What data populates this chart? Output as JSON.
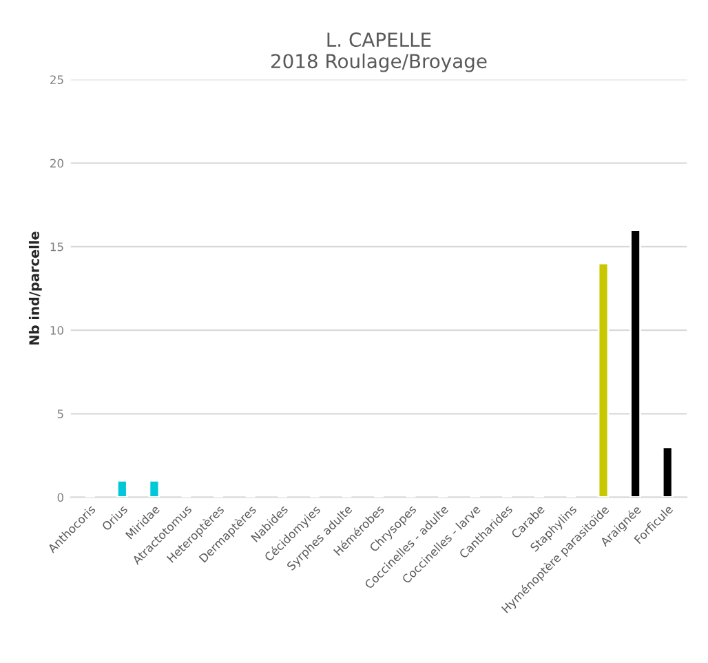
{
  "chart_data": {
    "type": "bar",
    "title": "L. CAPELLE\n2018 Roulage/Broyage",
    "ylabel": "Nb ind/parcelle",
    "categories": [
      "Anthocoris",
      "Orius",
      "Miridae",
      "Atractotomus",
      "Heteroptères",
      "Dermaptères",
      "Nabides",
      "Cécidomyies",
      "Syrphes adulte",
      "Hémérobes",
      "Chrysopes",
      "Coccinelles - adulte",
      "Coccinelles - larve",
      "Cantharides",
      "Carabe",
      "Staphylins",
      "Hyménoptère parasitoïde",
      "Araignée",
      "Forficule"
    ],
    "values": [
      0,
      1,
      1,
      0,
      0,
      0,
      0,
      0,
      0,
      0,
      0,
      0,
      0,
      0,
      0,
      0,
      14,
      16,
      3
    ],
    "colors": [
      null,
      "#00c8d8",
      "#00c8d8",
      null,
      null,
      null,
      null,
      null,
      null,
      null,
      null,
      null,
      null,
      null,
      null,
      null,
      "#c8c800",
      "#000000",
      "#000000"
    ],
    "ylim": [
      0,
      25
    ],
    "yticks": [
      0,
      5,
      10,
      15,
      20,
      25
    ],
    "grid": "y",
    "legend": false
  }
}
